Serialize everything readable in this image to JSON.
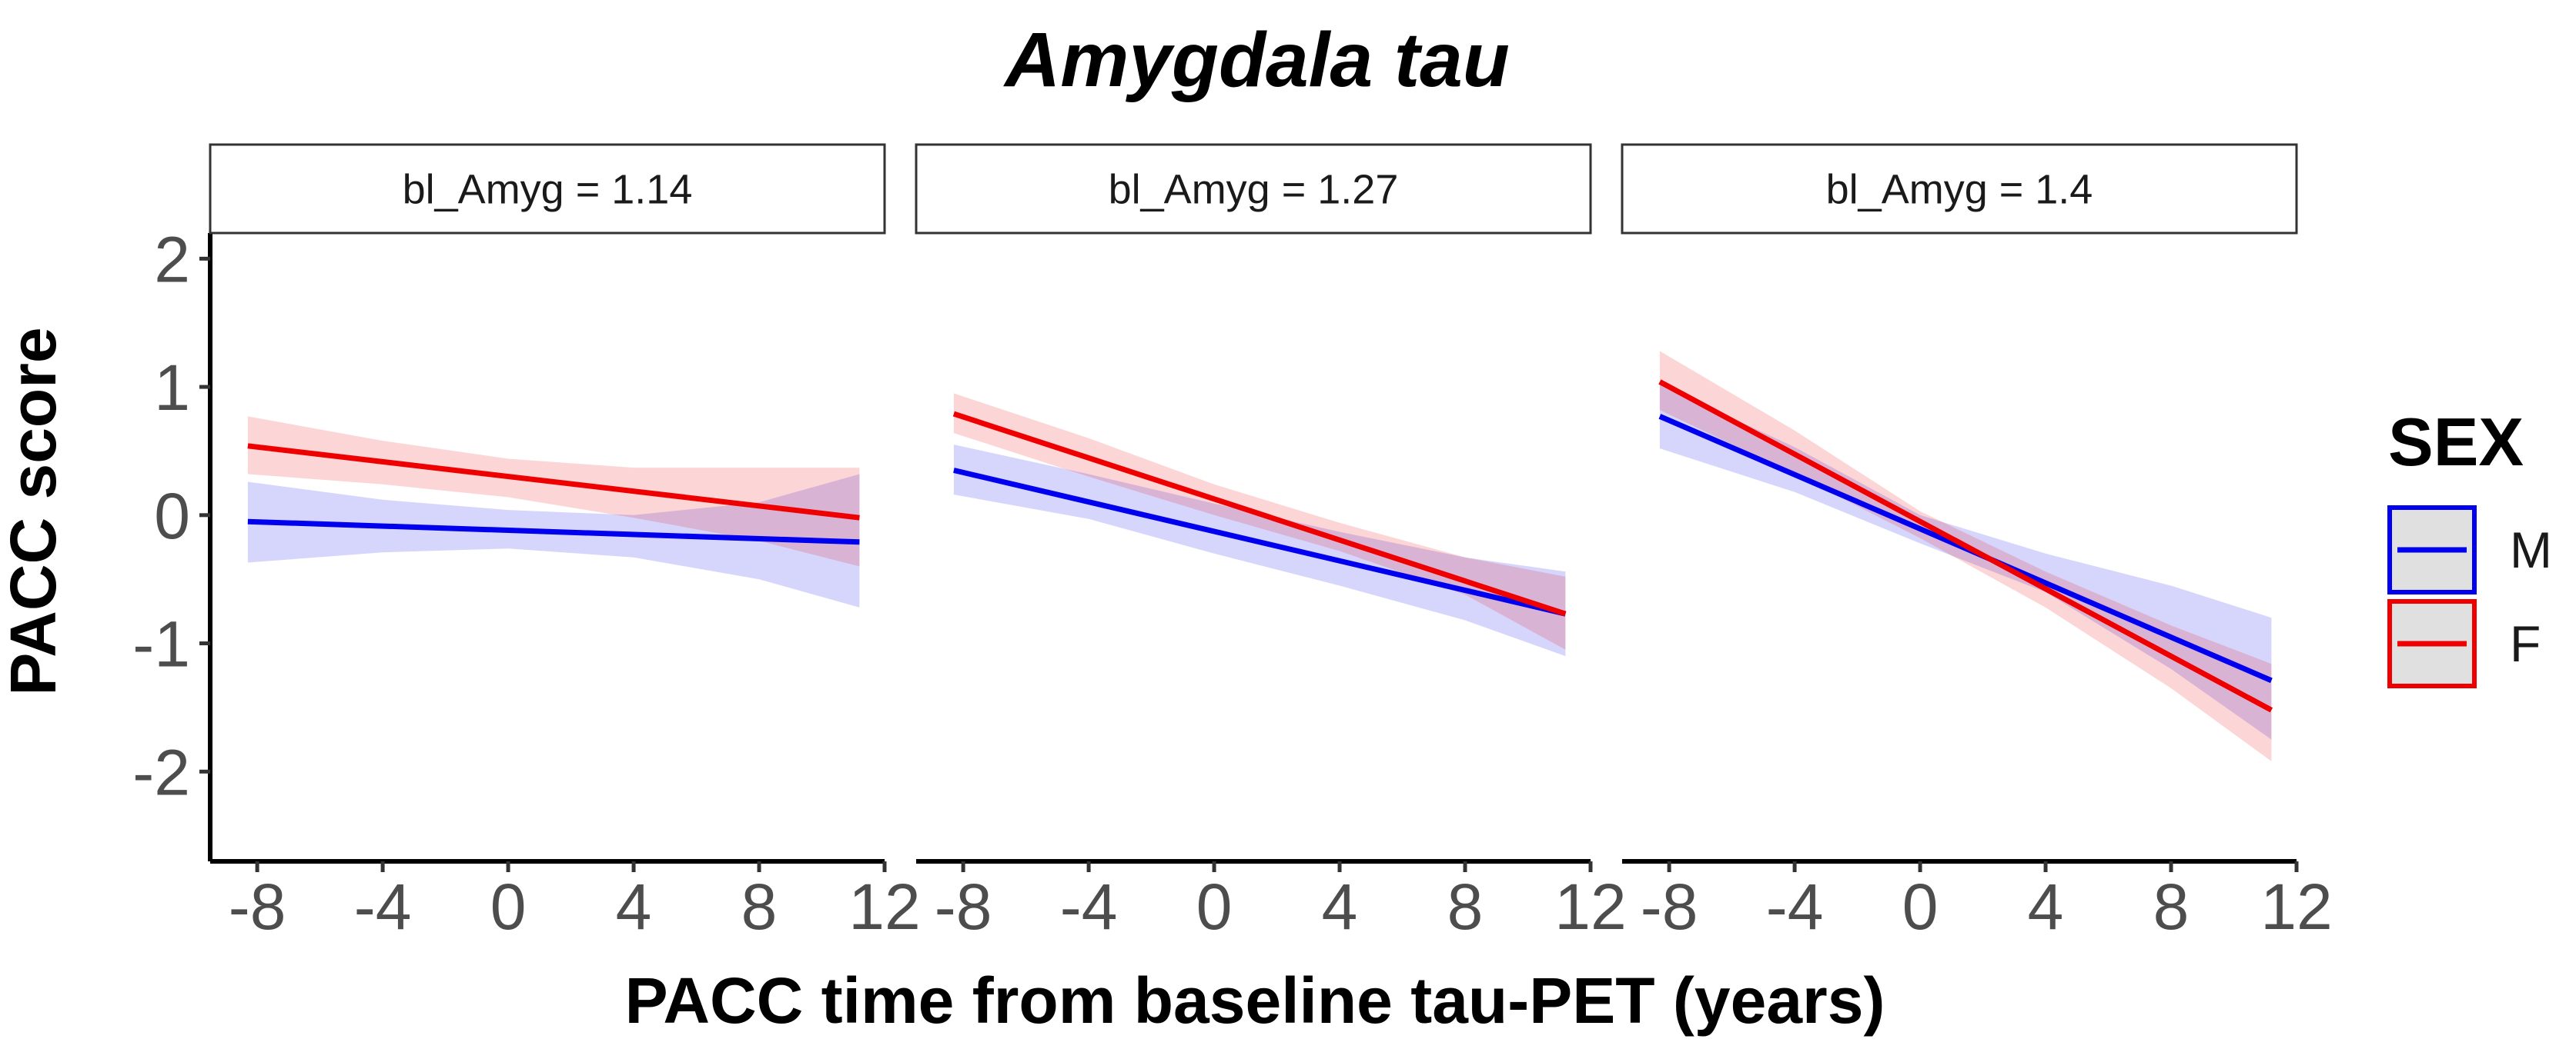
{
  "chart_data": {
    "type": "line",
    "title": "Amygdala tau",
    "xlabel": "PACC time from baseline tau-PET (years)",
    "ylabel": "PACC score",
    "xlim": [
      -9.5,
      12
    ],
    "ylim": [
      -2.7,
      2.2
    ],
    "x_ticks": [
      -8,
      -4,
      0,
      4,
      8,
      12
    ],
    "x_tick_labels": [
      "-8",
      "-4",
      "0",
      "4",
      "8",
      "12"
    ],
    "y_ticks": [
      2,
      1,
      0,
      -1,
      -2
    ],
    "y_tick_labels": [
      "2",
      "1",
      "0",
      "-1",
      "-2"
    ],
    "grid": false,
    "legend": {
      "title": "SEX",
      "placement": "right",
      "entries": [
        {
          "label": "M",
          "color": "#0000ee"
        },
        {
          "label": "F",
          "color": "#ee0000"
        }
      ]
    },
    "panels": [
      {
        "strip": "bl_Amyg = 1.14",
        "series": [
          {
            "key": "M",
            "color": "#0000ee",
            "x": [
              -8.3,
              11.2
            ],
            "y": [
              -0.05,
              -0.21
            ],
            "band": {
              "x": [
                -8.3,
                -4,
                0,
                4,
                8,
                11.2
              ],
              "lower": [
                -0.37,
                -0.29,
                -0.26,
                -0.33,
                -0.5,
                -0.72
              ],
              "upper": [
                0.26,
                0.12,
                0.04,
                0.0,
                0.1,
                0.32
              ]
            }
          },
          {
            "key": "F",
            "color": "#ee0000",
            "x": [
              -8.3,
              11.2
            ],
            "y": [
              0.54,
              -0.02
            ],
            "band": {
              "x": [
                -8.3,
                -4,
                0,
                4,
                8,
                11.2
              ],
              "lower": [
                0.32,
                0.24,
                0.14,
                -0.02,
                -0.2,
                -0.4
              ],
              "upper": [
                0.77,
                0.58,
                0.44,
                0.37,
                0.37,
                0.37
              ]
            }
          }
        ]
      },
      {
        "strip": "bl_Amyg = 1.27",
        "series": [
          {
            "key": "M",
            "color": "#0000ee",
            "x": [
              -8.3,
              11.2
            ],
            "y": [
              0.35,
              -0.77
            ],
            "band": {
              "x": [
                -8.3,
                -4,
                0,
                4,
                8,
                11.2
              ],
              "lower": [
                0.16,
                -0.03,
                -0.3,
                -0.55,
                -0.82,
                -1.1
              ],
              "upper": [
                0.55,
                0.32,
                0.09,
                -0.13,
                -0.33,
                -0.44
              ]
            }
          },
          {
            "key": "F",
            "color": "#ee0000",
            "x": [
              -8.3,
              11.2
            ],
            "y": [
              0.79,
              -0.77
            ],
            "band": {
              "x": [
                -8.3,
                -4,
                0,
                4,
                8,
                11.2
              ],
              "lower": [
                0.64,
                0.3,
                0.0,
                -0.28,
                -0.62,
                -1.05
              ],
              "upper": [
                0.95,
                0.6,
                0.24,
                -0.06,
                -0.33,
                -0.48
              ]
            }
          }
        ]
      },
      {
        "strip": "bl_Amyg = 1.4",
        "series": [
          {
            "key": "M",
            "color": "#0000ee",
            "x": [
              -8.3,
              11.2
            ],
            "y": [
              0.77,
              -1.29
            ],
            "band": {
              "x": [
                -8.3,
                -4,
                0,
                4,
                8,
                11.2
              ],
              "lower": [
                0.52,
                0.18,
                -0.22,
                -0.6,
                -1.2,
                -1.75
              ],
              "upper": [
                1.02,
                0.53,
                0.0,
                -0.3,
                -0.55,
                -0.8
              ]
            }
          },
          {
            "key": "F",
            "color": "#ee0000",
            "x": [
              -8.3,
              11.2
            ],
            "y": [
              1.04,
              -1.52
            ],
            "band": {
              "x": [
                -8.3,
                -4,
                0,
                4,
                8,
                11.2
              ],
              "lower": [
                0.82,
                0.32,
                -0.18,
                -0.72,
                -1.35,
                -1.92
              ],
              "upper": [
                1.28,
                0.66,
                0.03,
                -0.44,
                -0.86,
                -1.16
              ]
            }
          }
        ]
      }
    ]
  }
}
